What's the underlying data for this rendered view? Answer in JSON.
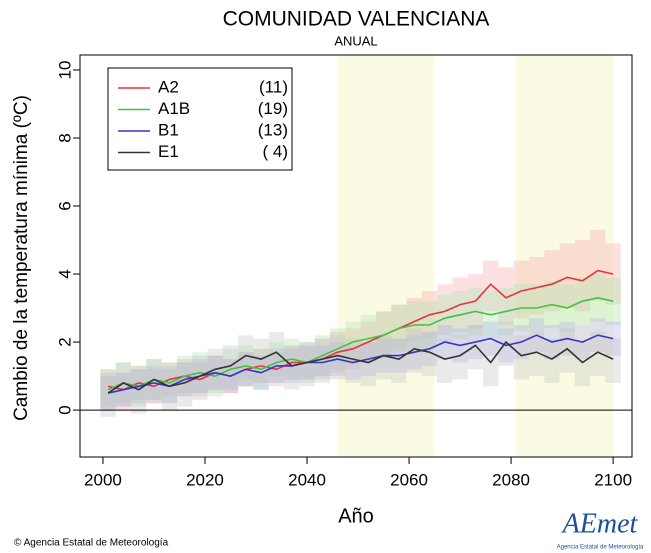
{
  "chart_data": {
    "type": "line",
    "title": "COMUNIDAD VALENCIANA",
    "subtitle": "ANUAL",
    "x_label": "Año",
    "y_label": "Cambio de la temperatura mínima (ºC)",
    "footer": "© Agencia Estatal de Meteorología",
    "logo": "AEmet",
    "logo_caption": "Agencia Estatal de Meteorología",
    "xlim": [
      1995.5,
      2103.7
    ],
    "xticks": [
      2000,
      2020,
      2040,
      2060,
      2080,
      2100
    ],
    "ylim": [
      -1.38,
      10.44
    ],
    "yticks": [
      0,
      2,
      4,
      6,
      8,
      10
    ],
    "reference_line": 0,
    "highlight_periods": [
      [
        2046,
        2065
      ],
      [
        2081,
        2100
      ]
    ],
    "highlight_color": "#fbfbe3",
    "legend": "top-left",
    "x": [
      2001,
      2004,
      2007,
      2010,
      2013,
      2016,
      2019,
      2022,
      2025,
      2028,
      2031,
      2034,
      2037,
      2040,
      2043,
      2046,
      2049,
      2052,
      2055,
      2058,
      2061,
      2064,
      2067,
      2070,
      2073,
      2076,
      2079,
      2082,
      2085,
      2088,
      2091,
      2094,
      2097,
      2100
    ],
    "series": [
      {
        "name": "A2",
        "count_label": "(11)",
        "color": "#e8333a",
        "band_color": "#f6a9ac",
        "values": [
          0.7,
          0.6,
          0.8,
          0.7,
          0.9,
          1.0,
          0.9,
          1.1,
          1.0,
          1.2,
          1.3,
          1.2,
          1.4,
          1.4,
          1.5,
          1.7,
          1.8,
          2.0,
          2.2,
          2.4,
          2.6,
          2.8,
          2.9,
          3.1,
          3.2,
          3.7,
          3.3,
          3.5,
          3.6,
          3.7,
          3.9,
          3.8,
          4.1,
          4.0
        ],
        "upper": [
          1.2,
          1.1,
          1.3,
          1.2,
          1.4,
          1.5,
          1.4,
          1.6,
          1.5,
          1.7,
          1.8,
          1.7,
          1.9,
          1.9,
          2.1,
          2.3,
          2.4,
          2.6,
          2.9,
          3.1,
          3.3,
          3.5,
          3.7,
          3.9,
          4.0,
          4.4,
          4.2,
          4.4,
          4.5,
          4.7,
          4.9,
          5.0,
          5.3,
          4.9
        ],
        "lower": [
          0.1,
          0.0,
          0.3,
          0.2,
          0.4,
          0.5,
          0.4,
          0.6,
          0.5,
          0.7,
          0.8,
          0.7,
          0.9,
          0.9,
          1.0,
          1.1,
          1.2,
          1.4,
          1.6,
          1.8,
          2.0,
          2.1,
          2.2,
          2.3,
          2.4,
          2.9,
          2.5,
          2.7,
          2.8,
          2.9,
          3.0,
          2.9,
          3.2,
          3.1
        ]
      },
      {
        "name": "A1B",
        "count_label": "(19)",
        "color": "#3fc43f",
        "band_color": "#a8e6a8",
        "values": [
          0.6,
          0.8,
          0.7,
          0.9,
          0.8,
          1.0,
          1.1,
          1.0,
          1.2,
          1.3,
          1.2,
          1.4,
          1.5,
          1.4,
          1.6,
          1.8,
          2.0,
          2.1,
          2.2,
          2.4,
          2.5,
          2.5,
          2.7,
          2.8,
          2.9,
          2.8,
          2.9,
          3.0,
          3.0,
          3.1,
          3.0,
          3.2,
          3.3,
          3.2
        ],
        "upper": [
          1.2,
          1.4,
          1.3,
          1.5,
          1.4,
          1.6,
          1.7,
          1.6,
          1.8,
          1.9,
          1.8,
          2.0,
          2.1,
          2.0,
          2.2,
          2.4,
          2.6,
          2.8,
          2.9,
          3.1,
          3.2,
          3.2,
          3.4,
          3.5,
          3.6,
          3.5,
          3.6,
          3.7,
          3.7,
          3.8,
          3.7,
          3.9,
          4.0,
          3.9
        ],
        "lower": [
          0.0,
          0.2,
          0.1,
          0.3,
          0.2,
          0.4,
          0.5,
          0.4,
          0.6,
          0.7,
          0.6,
          0.8,
          0.9,
          0.8,
          1.0,
          1.2,
          1.4,
          1.4,
          1.5,
          1.7,
          1.8,
          1.8,
          2.0,
          2.1,
          2.2,
          2.1,
          2.2,
          2.3,
          2.3,
          2.4,
          2.3,
          2.5,
          2.6,
          2.5
        ]
      },
      {
        "name": "B1",
        "count_label": "(13)",
        "color": "#3434cc",
        "band_color": "#b0b0ee",
        "values": [
          0.5,
          0.6,
          0.7,
          0.8,
          0.7,
          0.9,
          1.0,
          1.1,
          1.0,
          1.2,
          1.1,
          1.3,
          1.3,
          1.4,
          1.4,
          1.5,
          1.4,
          1.5,
          1.6,
          1.6,
          1.7,
          1.8,
          2.0,
          1.9,
          2.0,
          2.1,
          1.9,
          2.0,
          2.2,
          2.0,
          2.1,
          2.0,
          2.2,
          2.1
        ],
        "upper": [
          1.0,
          1.1,
          1.2,
          1.3,
          1.2,
          1.4,
          1.5,
          1.6,
          1.5,
          1.7,
          1.6,
          1.8,
          1.8,
          1.9,
          1.9,
          2.0,
          1.9,
          2.0,
          2.1,
          2.1,
          2.2,
          2.3,
          2.5,
          2.4,
          2.5,
          2.6,
          2.4,
          2.5,
          2.7,
          2.5,
          2.6,
          2.5,
          2.7,
          2.6
        ],
        "lower": [
          0.0,
          0.1,
          0.2,
          0.3,
          0.2,
          0.4,
          0.5,
          0.6,
          0.5,
          0.7,
          0.6,
          0.8,
          0.8,
          0.9,
          0.9,
          1.0,
          0.9,
          1.0,
          1.1,
          1.1,
          1.2,
          1.3,
          1.5,
          1.4,
          1.5,
          1.6,
          1.4,
          1.5,
          1.7,
          1.5,
          1.6,
          1.5,
          1.7,
          1.6
        ]
      },
      {
        "name": "E1",
        "count_label": "( 4)",
        "color": "#333333",
        "band_color": "#c4c4c4",
        "values": [
          0.5,
          0.8,
          0.6,
          0.9,
          0.7,
          0.8,
          1.0,
          1.2,
          1.3,
          1.6,
          1.5,
          1.7,
          1.3,
          1.4,
          1.5,
          1.6,
          1.5,
          1.4,
          1.6,
          1.5,
          1.8,
          1.7,
          1.5,
          1.6,
          1.9,
          1.4,
          2.0,
          1.6,
          1.7,
          1.5,
          1.8,
          1.4,
          1.7,
          1.5
        ],
        "upper": [
          1.1,
          1.4,
          1.2,
          1.5,
          1.3,
          1.4,
          1.6,
          1.8,
          1.9,
          2.2,
          2.1,
          2.3,
          1.9,
          2.0,
          2.1,
          2.2,
          2.1,
          2.0,
          2.2,
          2.1,
          2.4,
          2.3,
          2.1,
          2.2,
          2.5,
          2.0,
          2.6,
          2.2,
          2.3,
          2.1,
          2.4,
          2.0,
          2.3,
          2.1
        ],
        "lower": [
          -0.2,
          0.1,
          -0.1,
          0.2,
          0.0,
          0.1,
          0.3,
          0.5,
          0.6,
          0.9,
          0.8,
          1.0,
          0.6,
          0.7,
          0.8,
          0.9,
          0.8,
          0.7,
          0.9,
          0.8,
          1.1,
          1.0,
          0.8,
          0.9,
          1.2,
          0.7,
          1.3,
          0.9,
          1.0,
          0.8,
          1.1,
          0.7,
          1.0,
          0.8
        ]
      }
    ]
  }
}
